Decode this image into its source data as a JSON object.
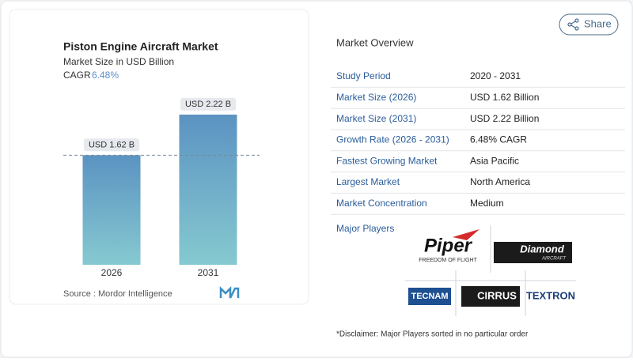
{
  "chart_data": {
    "type": "bar",
    "title": "Piston Engine Aircraft Market",
    "subtitle": "Market Size in USD Billion",
    "cagr": {
      "label": "CAGR",
      "value": "6.48%"
    },
    "categories": [
      "2026",
      "2031"
    ],
    "values": [
      1.62,
      2.22
    ],
    "value_labels": [
      "USD 1.62 B",
      "USD 2.22 B"
    ],
    "source": "Source : Mordor Intelligence"
  },
  "share": "Share",
  "overview": {
    "title": "Market Overview",
    "rows": [
      [
        "Study Period",
        "2020 - 2031"
      ],
      [
        "Market Size (2026)",
        "USD 1.62 Billion"
      ],
      [
        "Market Size (2031)",
        "USD 2.22 Billion"
      ],
      [
        "Growth Rate (2026 - 2031)",
        "6.48% CAGR"
      ],
      [
        "Fastest Growing Market",
        "Asia Pacific"
      ],
      [
        "Largest Market",
        "North America"
      ],
      [
        "Market Concentration",
        "Medium"
      ]
    ]
  },
  "players": {
    "title": "Major Players",
    "logos": [
      {
        "name": "Piper",
        "tagline": "FREEDOM OF FLIGHT"
      },
      {
        "name": "Diamond",
        "tagline": "AIRCRAFT"
      },
      {
        "name": "TECNAM"
      },
      {
        "name": "CIRRUS"
      },
      {
        "name": "TEXTRON"
      }
    ]
  },
  "disclaimer": "*Disclaimer: Major Players sorted in no particular order"
}
